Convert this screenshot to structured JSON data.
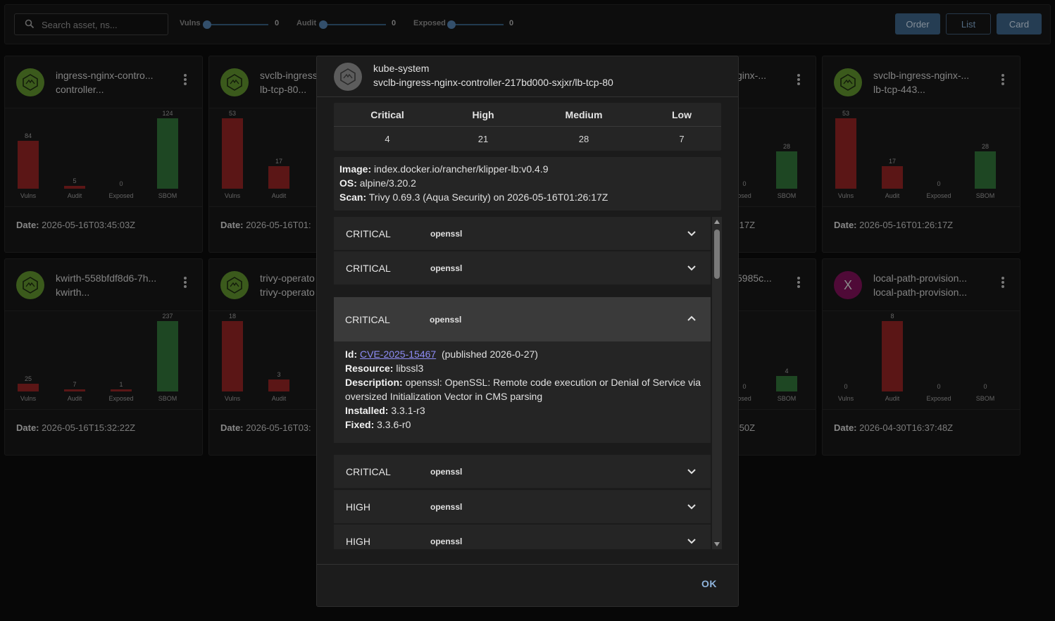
{
  "toolbar": {
    "search_placeholder": "Search asset, ns...",
    "sliders": [
      {
        "label": "Vulns",
        "value": "0"
      },
      {
        "label": "Audit",
        "value": "0"
      },
      {
        "label": "Exposed",
        "value": "0"
      }
    ],
    "view_buttons": {
      "order": "Order",
      "list": "List",
      "card": "Card"
    }
  },
  "cards": [
    {
      "title1": "ingress-nginx-contro...",
      "title2": "controller...",
      "avatar": "kubernetes-icon",
      "bars": [
        {
          "label": "Vulns",
          "value": 84
        },
        {
          "label": "Audit",
          "value": 5
        },
        {
          "label": "Exposed",
          "value": 0
        },
        {
          "label": "SBOM",
          "value": 124
        }
      ],
      "date_label": "Date:",
      "date": "2026-05-16T03:45:03Z"
    },
    {
      "title1": "svclb-ingress",
      "title2": "lb-tcp-80...",
      "avatar": "kubernetes-icon",
      "bars": [
        {
          "label": "Vulns",
          "value": 53
        },
        {
          "label": "Audit",
          "value": 17
        }
      ],
      "date_label": "Date:",
      "date": "2026-05-16T01:"
    },
    {
      "title1": "ginx-...",
      "title2": "",
      "avatar": "",
      "bars": [
        {
          "label": "osed",
          "value": 0
        },
        {
          "label": "SBOM",
          "value": 28
        }
      ],
      "date_label": "",
      "date": ":17Z"
    },
    {
      "title1": "svclb-ingress-nginx-...",
      "title2": "lb-tcp-443...",
      "avatar": "kubernetes-icon",
      "bars": [
        {
          "label": "Vulns",
          "value": 53
        },
        {
          "label": "Audit",
          "value": 17
        },
        {
          "label": "Exposed",
          "value": 0
        },
        {
          "label": "SBOM",
          "value": 28
        }
      ],
      "date_label": "Date:",
      "date": "2026-05-16T01:26:17Z"
    },
    {
      "title1": "kwirth-558bfdf8d6-7h...",
      "title2": "kwirth...",
      "avatar": "kubernetes-icon",
      "bars": [
        {
          "label": "Vulns",
          "value": 25
        },
        {
          "label": "Audit",
          "value": 7
        },
        {
          "label": "Exposed",
          "value": 1
        },
        {
          "label": "SBOM",
          "value": 237
        }
      ],
      "date_label": "Date:",
      "date": "2026-05-16T15:32:22Z"
    },
    {
      "title1": "trivy-operato",
      "title2": "trivy-operato",
      "avatar": "kubernetes-icon",
      "bars": [
        {
          "label": "Vulns",
          "value": 18
        },
        {
          "label": "Audit",
          "value": 3
        }
      ],
      "date_label": "Date:",
      "date": "2026-05-16T03:"
    },
    {
      "title1": "5985c...",
      "title2": ".",
      "avatar": "",
      "bars": [
        {
          "label": "osed",
          "value": 0
        },
        {
          "label": "SBOM",
          "value": 4
        }
      ],
      "date_label": "",
      "date": ":50Z"
    },
    {
      "title1": "local-path-provision...",
      "title2": "local-path-provision...",
      "avatar": "X",
      "bars": [
        {
          "label": "Vulns",
          "value": 0
        },
        {
          "label": "Audit",
          "value": 8
        },
        {
          "label": "Exposed",
          "value": 0
        },
        {
          "label": "SBOM",
          "value": 0
        }
      ],
      "date_label": "Date:",
      "date": "2026-04-30T16:37:48Z"
    }
  ],
  "dialog": {
    "namespace": "kube-system",
    "name": "svclb-ingress-nginx-controller-217bd000-sxjxr/lb-tcp-80",
    "severity_table": {
      "headers": [
        "Critical",
        "High",
        "Medium",
        "Low"
      ],
      "values": [
        "4",
        "21",
        "28",
        "7"
      ]
    },
    "image_info": {
      "image_label": "Image:",
      "image": "index.docker.io/rancher/klipper-lb:v0.4.9",
      "os_label": "OS:",
      "os": "alpine/3.20.2",
      "scan_label": "Scan:",
      "scan": "Trivy 0.69.3 (Aqua Security) on 2026-05-16T01:26:17Z"
    },
    "vulns": [
      {
        "severity": "CRITICAL",
        "package": "openssl"
      },
      {
        "severity": "CRITICAL",
        "package": "openssl"
      },
      {
        "severity": "CRITICAL",
        "package": "openssl"
      },
      {
        "severity": "CRITICAL",
        "package": "openssl"
      },
      {
        "severity": "HIGH",
        "package": "openssl"
      },
      {
        "severity": "HIGH",
        "package": "openssl"
      }
    ],
    "expanded": {
      "id_label": "Id:",
      "id": "CVE-2025-15467",
      "published": "(published 2026-0-27)",
      "resource_label": "Resource:",
      "resource": "libssl3",
      "description_label": "Description:",
      "description": "openssl: OpenSSL: Remote code execution or Denial of Service via oversized Initialization Vector in CMS parsing",
      "installed_label": "Installed:",
      "installed": "3.3.1-r3",
      "fixed_label": "Fixed:",
      "fixed": "3.3.6-r0"
    },
    "ok_label": "OK"
  },
  "colors": {
    "critical_bar": "#8c2222",
    "sbom_bar": "#2f6d36",
    "accent": "#3a5f80",
    "link": "#8d8cf5"
  }
}
